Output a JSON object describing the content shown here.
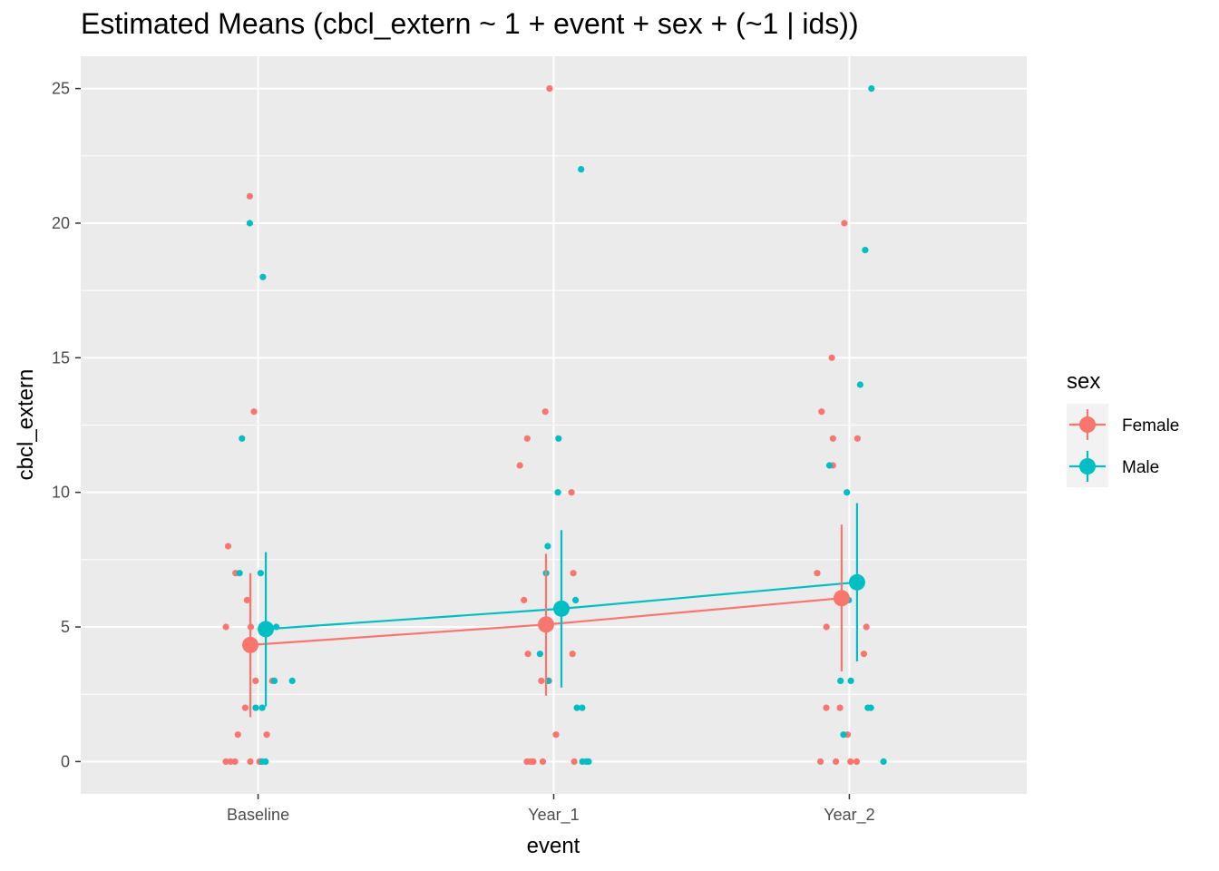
{
  "chart_data": {
    "type": "scatter",
    "title": "Estimated Means (cbcl_extern ~ 1 + event + sex + (~1 | ids))",
    "xlabel": "event",
    "ylabel": "cbcl_extern",
    "categories": [
      "Baseline",
      "Year_1",
      "Year_2"
    ],
    "ylim": [
      -1.2,
      26.2
    ],
    "yticks": [
      0,
      5,
      10,
      15,
      20,
      25
    ],
    "grid": true,
    "legend": {
      "title": "sex",
      "position": "right"
    },
    "series": [
      {
        "name": "Female",
        "color": "#F8766D",
        "means": [
          4.33,
          5.09,
          6.07
        ],
        "ci": [
          [
            1.65,
            7.0
          ],
          [
            2.45,
            7.72
          ],
          [
            3.35,
            8.8
          ]
        ],
        "raw_points": [
          {
            "event": "Baseline",
            "values": [
              21,
              13,
              8,
              7,
              6,
              5,
              5,
              3,
              3,
              2,
              1,
              1,
              0,
              0,
              0,
              0,
              0,
              0
            ]
          },
          {
            "event": "Year_1",
            "values": [
              25,
              13,
              12,
              11,
              10,
              7,
              6,
              5,
              4,
              4,
              3,
              3,
              1,
              0,
              0,
              0,
              0,
              0
            ]
          },
          {
            "event": "Year_2",
            "values": [
              20,
              15,
              13,
              12,
              12,
              11,
              7,
              5,
              5,
              4,
              2,
              2,
              1,
              0,
              0,
              0,
              0
            ]
          }
        ]
      },
      {
        "name": "Male",
        "color": "#00BFC4",
        "means": [
          4.92,
          5.68,
          6.66
        ],
        "ci": [
          [
            2.05,
            7.78
          ],
          [
            2.75,
            8.6
          ],
          [
            3.72,
            9.6
          ]
        ],
        "raw_points": [
          {
            "event": "Baseline",
            "values": [
              20,
              18,
              12,
              7,
              7,
              5,
              3,
              3,
              2,
              2,
              0,
              0
            ]
          },
          {
            "event": "Year_1",
            "values": [
              22,
              12,
              10,
              8,
              7,
              6,
              4,
              3,
              2,
              2,
              0,
              0,
              0
            ]
          },
          {
            "event": "Year_2",
            "values": [
              25,
              19,
              14,
              11,
              10,
              6,
              3,
              3,
              2,
              2,
              1,
              0
            ]
          }
        ]
      }
    ]
  }
}
